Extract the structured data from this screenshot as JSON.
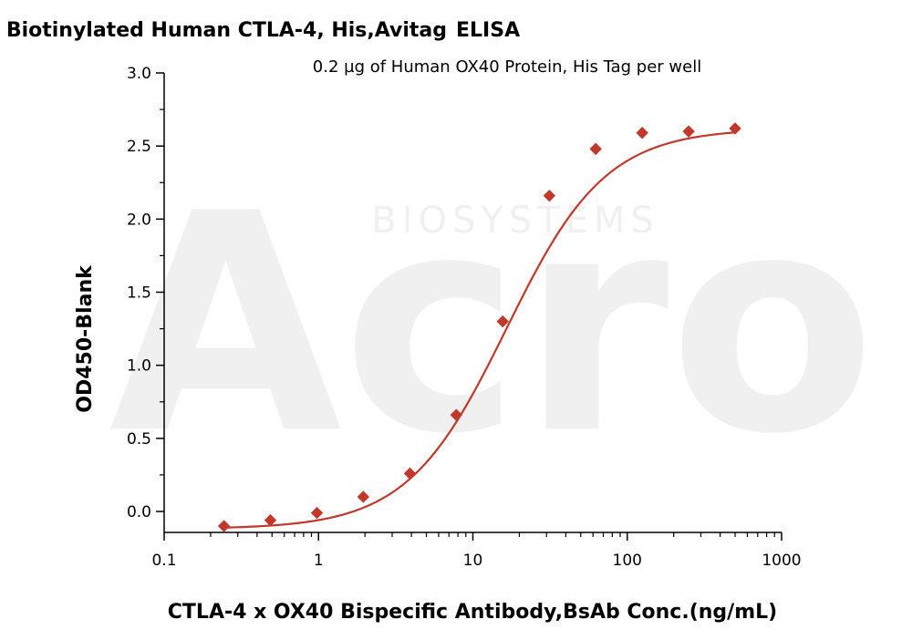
{
  "chart_data": {
    "type": "scatter",
    "title": "Biotinylated Human CTLA-4, His,Avitag",
    "title_suffix": "ELISA",
    "subtitle": "0.2 µg of Human OX40 Protein, His Tag per well",
    "xlabel": "CTLA-4 x OX40 Bispecific Antibody,BsAb Conc.(ng/mL)",
    "ylabel": "OD450-Blank",
    "xscale": "log",
    "xlim": [
      0.1,
      1000
    ],
    "ylim": [
      -0.15,
      3.0
    ],
    "xticks": [
      0.1,
      1,
      10,
      100,
      1000
    ],
    "xtick_labels": [
      "0.1",
      "1",
      "10",
      "100",
      "1000"
    ],
    "yticks": [
      0.0,
      0.5,
      1.0,
      1.5,
      2.0,
      2.5,
      3.0
    ],
    "ytick_labels": [
      "0.0",
      "0.5",
      "1.0",
      "1.5",
      "2.0",
      "2.5",
      "3.0"
    ],
    "grid": false,
    "series": [
      {
        "color": "#c0392b",
        "marker": "diamond",
        "fit": "4PL",
        "x": [
          0.244,
          0.488,
          0.977,
          1.95,
          3.91,
          7.81,
          15.6,
          31.3,
          62.5,
          125,
          250,
          500
        ],
        "y": [
          -0.1,
          -0.06,
          -0.01,
          0.1,
          0.26,
          0.66,
          1.3,
          2.16,
          2.48,
          2.59,
          2.6,
          2.62
        ]
      }
    ],
    "fit_params": {
      "bottom": -0.12,
      "top": 2.62,
      "ec50": 16.5,
      "hill": 1.35
    },
    "watermark": {
      "main": "Acro",
      "sub": "BIOSYSTEMS"
    }
  }
}
